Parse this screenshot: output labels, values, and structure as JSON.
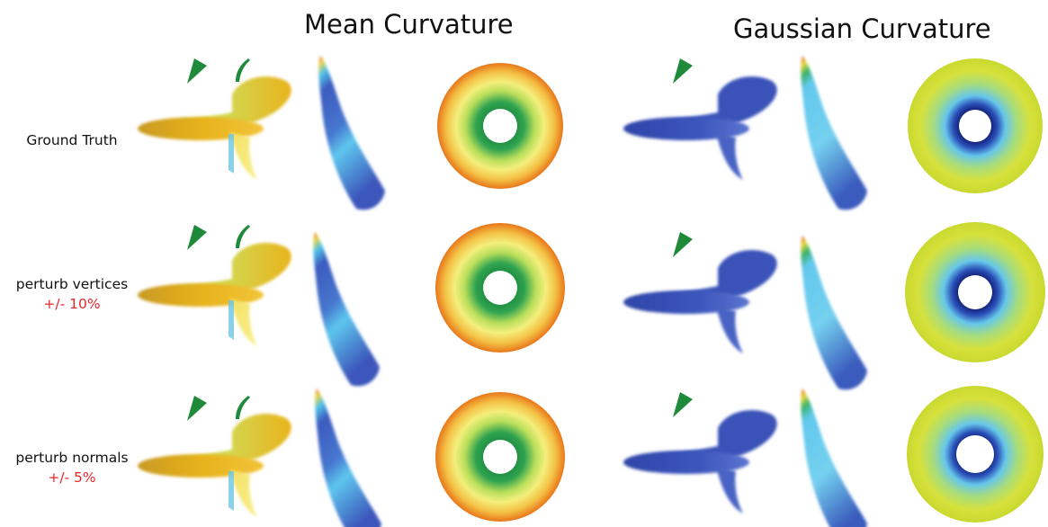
{
  "column_groups": [
    {
      "title": "Mean Curvature"
    },
    {
      "title": "Gaussian Curvature"
    }
  ],
  "rows": [
    {
      "label": "Ground Truth",
      "sublabel": ""
    },
    {
      "label": "perturb vertices",
      "sublabel": "+/- 10%"
    },
    {
      "label": "perturb normals",
      "sublabel": "+/- 5%"
    }
  ],
  "colors": {
    "marker": "#1f8a3a",
    "perturbation_label": "#e8262a",
    "mean_spiral": "#e0a81c",
    "gauss_spiral": "#3a52b8",
    "surface_blue": "#3f5fc2",
    "surface_cyan": "#5cc8ef",
    "torus_outer_orange": "#ee8a1e",
    "torus_yellow": "#f3ef7a",
    "torus_green": "#2f9a48",
    "gauss_torus_yellow": "#d6e23a",
    "gauss_torus_navy": "#1e2a8a"
  }
}
